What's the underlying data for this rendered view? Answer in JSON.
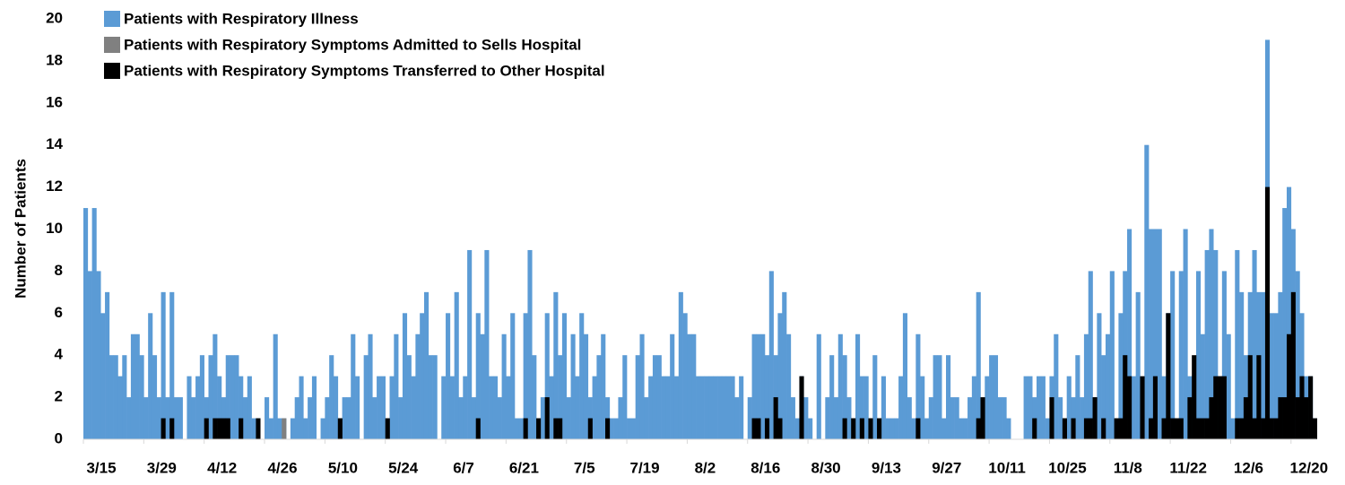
{
  "chart_data": {
    "type": "bar",
    "y_label": "Number of Patients",
    "categories": [
      "3/15",
      null,
      null,
      null,
      null,
      null,
      null,
      null,
      null,
      null,
      null,
      null,
      null,
      null,
      "3/29",
      null,
      null,
      null,
      null,
      null,
      null,
      null,
      null,
      null,
      null,
      null,
      null,
      null,
      "4/12",
      null,
      null,
      null,
      null,
      null,
      null,
      null,
      null,
      null,
      null,
      null,
      null,
      null,
      "4/26",
      null,
      null,
      null,
      null,
      null,
      null,
      null,
      null,
      null,
      null,
      null,
      null,
      null,
      "5/10",
      null,
      null,
      null,
      null,
      null,
      null,
      null,
      null,
      null,
      null,
      null,
      null,
      null,
      "5/24",
      null,
      null,
      null,
      null,
      null,
      null,
      null,
      null,
      null,
      null,
      null,
      null,
      null,
      "6/7",
      null,
      null,
      null,
      null,
      null,
      null,
      null,
      null,
      null,
      null,
      null,
      null,
      null,
      "6/21",
      null,
      null,
      null,
      null,
      null,
      null,
      null,
      null,
      null,
      null,
      null,
      null,
      null,
      "7/5",
      null,
      null,
      null,
      null,
      null,
      null,
      null,
      null,
      null,
      null,
      null,
      null,
      null,
      "7/19",
      null,
      null,
      null,
      null,
      null,
      null,
      null,
      null,
      null,
      null,
      null,
      null,
      null,
      "8/2",
      null,
      null,
      null,
      null,
      null,
      null,
      null,
      null,
      null,
      null,
      null,
      null,
      null,
      "8/16",
      null,
      null,
      null,
      null,
      null,
      null,
      null,
      null,
      null,
      null,
      null,
      null,
      null,
      "8/30",
      null,
      null,
      null,
      null,
      null,
      null,
      null,
      null,
      null,
      null,
      null,
      null,
      null,
      "9/13",
      null,
      null,
      null,
      null,
      null,
      null,
      null,
      null,
      null,
      null,
      null,
      null,
      null,
      "9/27",
      null,
      null,
      null,
      null,
      null,
      null,
      null,
      null,
      null,
      null,
      null,
      null,
      null,
      "10/11",
      null,
      null,
      null,
      null,
      null,
      null,
      null,
      null,
      null,
      null,
      null,
      null,
      null,
      "10/25",
      null,
      null,
      null,
      null,
      null,
      null,
      null,
      null,
      null,
      null,
      null,
      null,
      null,
      "11/8",
      null,
      null,
      null,
      null,
      null,
      null,
      null,
      null,
      null,
      null,
      null,
      null,
      null,
      "11/22",
      null,
      null,
      null,
      null,
      null,
      null,
      null,
      null,
      null,
      null,
      null,
      null,
      null,
      "12/6",
      null,
      null,
      null,
      null,
      null,
      null,
      null,
      null,
      null,
      null,
      null,
      null,
      null,
      "12/20",
      null,
      null,
      null,
      null,
      null
    ],
    "series": [
      {
        "name": "Patients with Respiratory Illness",
        "color": "#5b9bd5",
        "values": [
          11,
          8,
          11,
          8,
          6,
          7,
          4,
          4,
          3,
          4,
          2,
          5,
          5,
          4,
          2,
          6,
          4,
          2,
          7,
          2,
          7,
          2,
          2,
          0,
          3,
          2,
          3,
          4,
          2,
          4,
          5,
          3,
          2,
          4,
          4,
          4,
          3,
          2,
          3,
          1,
          1,
          0,
          2,
          1,
          5,
          1,
          1,
          0,
          1,
          2,
          3,
          1,
          2,
          3,
          0,
          1,
          2,
          4,
          3,
          1,
          2,
          2,
          5,
          3,
          0,
          4,
          5,
          2,
          3,
          3,
          1,
          3,
          5,
          2,
          6,
          4,
          3,
          5,
          6,
          7,
          4,
          4,
          0,
          3,
          6,
          3,
          7,
          2,
          3,
          9,
          2,
          6,
          5,
          9,
          3,
          3,
          2,
          5,
          3,
          6,
          1,
          1,
          6,
          9,
          4,
          1,
          2,
          6,
          3,
          7,
          4,
          6,
          2,
          5,
          3,
          6,
          5,
          2,
          3,
          4,
          5,
          2,
          1,
          1,
          2,
          4,
          1,
          1,
          4,
          5,
          2,
          3,
          4,
          4,
          3,
          3,
          5,
          3,
          7,
          6,
          5,
          5,
          3,
          3,
          3,
          3,
          3,
          3,
          3,
          3,
          3,
          2,
          3,
          0,
          2,
          5,
          5,
          5,
          4,
          8,
          4,
          6,
          7,
          5,
          2,
          1,
          3,
          2,
          1,
          0,
          5,
          0,
          2,
          4,
          2,
          5,
          4,
          2,
          1,
          5,
          3,
          3,
          1,
          4,
          1,
          3,
          1,
          1,
          1,
          3,
          6,
          2,
          1,
          5,
          3,
          1,
          2,
          4,
          4,
          1,
          4,
          2,
          2,
          1,
          1,
          2,
          3,
          7,
          1,
          3,
          4,
          4,
          2,
          2,
          1,
          0,
          0,
          0,
          3,
          3,
          2,
          3,
          3,
          1,
          3,
          5,
          2,
          1,
          3,
          2,
          4,
          2,
          5,
          8,
          2,
          6,
          4,
          5,
          8,
          1,
          6,
          8,
          10,
          3,
          7,
          1,
          14,
          10,
          10,
          10,
          3,
          6,
          8,
          1,
          8,
          10,
          3,
          3,
          8,
          5,
          9,
          10,
          9,
          3,
          8,
          5,
          1,
          9,
          7,
          4,
          7,
          9,
          7,
          7,
          19,
          6,
          6,
          7,
          11,
          12,
          10,
          8,
          6,
          3,
          3,
          1
        ]
      },
      {
        "name": "Patients with Respiratory Symptoms Admitted to Sells Hospital",
        "color": "#808080",
        "values": [
          0,
          0,
          0,
          0,
          0,
          0,
          0,
          0,
          0,
          0,
          0,
          0,
          0,
          0,
          0,
          0,
          0,
          0,
          0,
          0,
          0,
          0,
          0,
          0,
          0,
          0,
          0,
          0,
          0,
          0,
          0,
          0,
          0,
          0,
          0,
          0,
          0,
          0,
          0,
          0,
          0,
          0,
          0,
          0,
          0,
          0,
          1,
          0,
          0,
          0,
          0,
          0,
          0,
          0,
          0,
          0,
          0,
          0,
          0,
          0,
          0,
          0,
          0,
          0,
          0,
          0,
          0,
          0,
          0,
          0,
          0,
          0,
          0,
          0,
          0,
          0,
          0,
          0,
          0,
          0,
          0,
          0,
          0,
          0,
          0,
          0,
          0,
          0,
          0,
          0,
          0,
          0,
          0,
          0,
          0,
          0,
          0,
          0,
          0,
          0,
          0,
          0,
          0,
          0,
          0,
          0,
          0,
          0,
          0,
          0,
          0,
          0,
          0,
          0,
          0,
          0,
          0,
          0,
          0,
          0,
          0,
          0,
          0,
          0,
          0,
          0,
          0,
          0,
          0,
          0,
          0,
          0,
          0,
          0,
          0,
          0,
          0,
          0,
          0,
          0,
          0,
          0,
          0,
          0,
          0,
          0,
          0,
          0,
          0,
          0,
          0,
          0,
          0,
          0,
          0,
          0,
          0,
          0,
          0,
          0,
          0,
          0,
          0,
          0,
          0,
          0,
          0,
          0,
          0,
          0,
          0,
          0,
          0,
          0,
          0,
          0,
          0,
          0,
          0,
          0,
          0,
          0,
          0,
          0,
          0,
          0,
          0,
          0,
          0,
          0,
          0,
          0,
          0,
          0,
          0,
          0,
          0,
          0,
          0,
          0,
          0,
          0,
          0,
          0,
          0,
          0,
          0,
          0,
          0,
          0,
          0,
          0,
          0,
          0,
          0,
          0,
          0,
          0,
          0,
          0,
          0,
          0,
          0,
          0,
          0,
          0,
          0,
          0,
          0,
          0,
          0,
          0,
          0,
          0,
          0,
          0,
          0,
          0,
          0,
          0,
          0,
          0,
          0,
          0,
          0,
          0,
          0,
          0,
          0,
          0,
          0,
          0,
          0,
          0,
          0,
          0,
          0,
          0,
          0,
          0,
          0,
          0,
          0,
          0,
          0,
          0,
          0,
          0,
          0,
          0,
          0,
          0,
          0,
          0,
          0,
          0,
          0,
          0,
          0,
          0,
          0,
          0,
          0,
          0,
          0,
          0
        ]
      },
      {
        "name": "Patients with Respiratory Symptoms Transferred to Other Hospital",
        "color": "#000000",
        "values": [
          0,
          0,
          0,
          0,
          0,
          0,
          0,
          0,
          0,
          0,
          0,
          0,
          0,
          0,
          0,
          0,
          0,
          0,
          1,
          0,
          1,
          0,
          0,
          0,
          0,
          0,
          0,
          0,
          1,
          0,
          1,
          1,
          1,
          1,
          0,
          0,
          1,
          0,
          0,
          0,
          1,
          0,
          0,
          0,
          0,
          0,
          0,
          0,
          0,
          0,
          0,
          0,
          0,
          0,
          0,
          0,
          0,
          0,
          0,
          1,
          0,
          0,
          0,
          0,
          0,
          0,
          0,
          0,
          0,
          0,
          1,
          0,
          0,
          0,
          0,
          0,
          0,
          0,
          0,
          0,
          0,
          0,
          0,
          0,
          0,
          0,
          0,
          0,
          0,
          0,
          0,
          1,
          0,
          0,
          0,
          0,
          0,
          0,
          0,
          0,
          0,
          0,
          1,
          0,
          0,
          1,
          0,
          2,
          0,
          1,
          1,
          0,
          0,
          0,
          0,
          0,
          0,
          1,
          0,
          0,
          0,
          1,
          0,
          0,
          0,
          0,
          0,
          0,
          0,
          0,
          0,
          0,
          0,
          0,
          0,
          0,
          0,
          0,
          0,
          0,
          0,
          0,
          0,
          0,
          0,
          0,
          0,
          0,
          0,
          0,
          0,
          0,
          0,
          0,
          0,
          1,
          1,
          0,
          1,
          0,
          2,
          1,
          0,
          0,
          0,
          0,
          3,
          0,
          0,
          0,
          0,
          0,
          0,
          0,
          0,
          0,
          1,
          0,
          1,
          0,
          1,
          0,
          1,
          0,
          1,
          0,
          0,
          0,
          0,
          0,
          0,
          0,
          0,
          1,
          0,
          0,
          0,
          0,
          0,
          0,
          0,
          0,
          0,
          0,
          0,
          0,
          0,
          1,
          2,
          0,
          0,
          0,
          0,
          0,
          0,
          0,
          0,
          0,
          0,
          0,
          1,
          0,
          0,
          0,
          2,
          0,
          0,
          1,
          0,
          1,
          0,
          0,
          1,
          1,
          2,
          0,
          1,
          0,
          0,
          1,
          1,
          4,
          3,
          0,
          0,
          3,
          0,
          1,
          3,
          0,
          1,
          6,
          1,
          1,
          1,
          0,
          2,
          4,
          1,
          1,
          1,
          2,
          3,
          3,
          3,
          0,
          0,
          1,
          1,
          2,
          4,
          1,
          4,
          1,
          12,
          1,
          1,
          2,
          2,
          5,
          7,
          2,
          3,
          2,
          3,
          1
        ]
      }
    ],
    "ylim": [
      0,
      20
    ],
    "yticks": [
      0,
      2,
      4,
      6,
      8,
      10,
      12,
      14,
      16,
      18,
      20
    ],
    "legend": "top-left"
  }
}
